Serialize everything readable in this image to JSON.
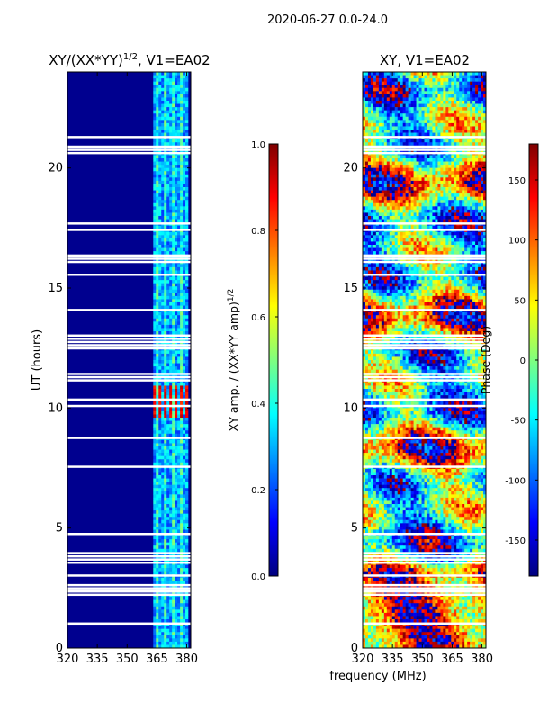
{
  "suptitle": "2020-06-27 0.0-24.0",
  "shared_xlabel": "frequency (MHz)",
  "colors": {
    "jet": [
      "#00007f",
      "#0000ff",
      "#007fff",
      "#00ffff",
      "#7fff7f",
      "#ffff00",
      "#ff7f00",
      "#ff0000",
      "#7f0000"
    ]
  },
  "chart_data": [
    {
      "type": "heatmap",
      "title": "XY/(XX*YY)",
      "title_exponent": "1/2",
      "title_suffix": ", V1=EA02",
      "xlabel": "",
      "ylabel": "UT (hours)",
      "xlim": [
        320,
        382
      ],
      "ylim": [
        0,
        24
      ],
      "xticks": [
        "320",
        "335",
        "350",
        "365",
        "380"
      ],
      "yticks": [
        "0",
        "5",
        "10",
        "15",
        "20"
      ],
      "colorbar": {
        "label": "XY amp. / (XX*YY amp)",
        "label_exponent": "1/2",
        "range": [
          0.0,
          1.0
        ],
        "ticks": [
          "0.0",
          "0.2",
          "0.4",
          "0.6",
          "0.8",
          "1.0"
        ]
      },
      "features": {
        "active_band_mhz": [
          363,
          381
        ],
        "bright_times_hours": [
          9.9,
          10.6
        ]
      }
    },
    {
      "type": "heatmap",
      "title": "XY, V1=EA02",
      "xlabel": "frequency (MHz)",
      "ylabel": "",
      "xlim": [
        320,
        382
      ],
      "ylim": [
        0,
        24
      ],
      "xticks": [
        "320",
        "335",
        "350",
        "365",
        "380"
      ],
      "yticks": [
        "0",
        "5",
        "10",
        "15",
        "20"
      ],
      "colorbar": {
        "label": "Phase (Deg)",
        "range": [
          -180,
          180
        ],
        "ticks": [
          "-150",
          "-100",
          "-50",
          "0",
          "50",
          "100",
          "150"
        ]
      }
    }
  ]
}
